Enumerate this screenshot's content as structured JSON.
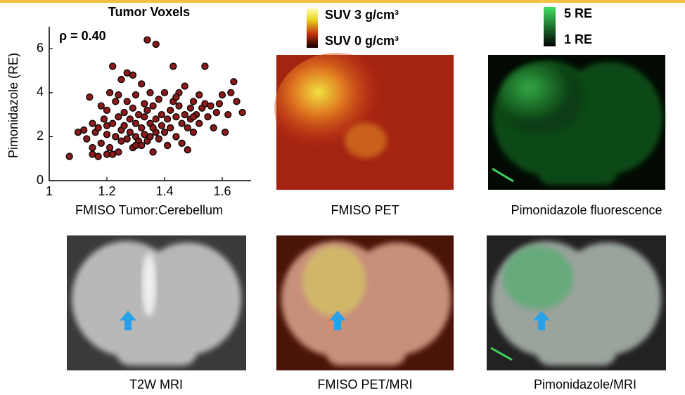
{
  "chart_data": {
    "type": "scatter",
    "title": "Tumor Voxels",
    "annotation": "ρ = 0.40",
    "x_label": "FMISO Tumor:Cerebellum",
    "y_label": "Pimonidazole (RE)",
    "color": "#8b1a1a",
    "xlim": [
      1,
      1.7
    ],
    "xticks": [
      1,
      1.2,
      1.4,
      1.6
    ],
    "ylim": [
      0,
      7
    ],
    "yticks": [
      0,
      2,
      4,
      6
    ],
    "x": [
      1.07,
      1.1,
      1.12,
      1.13,
      1.14,
      1.15,
      1.15,
      1.16,
      1.17,
      1.17,
      1.18,
      1.18,
      1.19,
      1.2,
      1.2,
      1.2,
      1.21,
      1.21,
      1.22,
      1.22,
      1.22,
      1.23,
      1.23,
      1.24,
      1.24,
      1.25,
      1.25,
      1.25,
      1.26,
      1.26,
      1.27,
      1.27,
      1.27,
      1.28,
      1.28,
      1.29,
      1.29,
      1.29,
      1.3,
      1.3,
      1.3,
      1.31,
      1.31,
      1.32,
      1.32,
      1.32,
      1.33,
      1.33,
      1.33,
      1.34,
      1.34,
      1.34,
      1.35,
      1.35,
      1.35,
      1.36,
      1.36,
      1.37,
      1.37,
      1.37,
      1.38,
      1.38,
      1.39,
      1.39,
      1.4,
      1.4,
      1.41,
      1.41,
      1.42,
      1.42,
      1.43,
      1.43,
      1.44,
      1.44,
      1.45,
      1.45,
      1.46,
      1.46,
      1.47,
      1.47,
      1.48,
      1.48,
      1.49,
      1.49,
      1.5,
      1.5,
      1.51,
      1.52,
      1.52,
      1.53,
      1.54,
      1.54,
      1.55,
      1.56,
      1.57,
      1.58,
      1.59,
      1.6,
      1.61,
      1.62,
      1.63,
      1.64,
      1.65,
      1.67,
      1.24,
      1.15,
      1.2,
      1.3,
      1.36,
      1.44,
      1.5
    ],
    "values": [
      1.1,
      2.2,
      2.3,
      1.9,
      3.8,
      1.2,
      2.6,
      2.2,
      1.1,
      2.4,
      1.7,
      3.4,
      2.8,
      1.2,
      2.1,
      3.2,
      1.5,
      4.0,
      2.6,
      1.2,
      5.2,
      2.0,
      3.6,
      1.3,
      2.9,
      2.3,
      4.6,
      1.8,
      3.1,
      2.5,
      4.9,
      1.9,
      3.6,
      2.2,
      2.8,
      1.5,
      3.3,
      4.8,
      2.0,
      2.6,
      3.9,
      1.8,
      3.0,
      2.4,
      4.4,
      1.6,
      2.9,
      3.5,
      2.1,
      6.4,
      1.8,
      3.2,
      2.6,
      4.0,
      2.0,
      3.4,
      1.3,
      2.8,
      6.2,
      2.2,
      3.7,
      1.9,
      2.5,
      3.0,
      4.0,
      2.2,
      2.8,
      1.6,
      3.2,
      2.4,
      5.2,
      3.6,
      2.0,
      2.9,
      3.4,
      4.0,
      2.6,
      1.7,
      3.0,
      4.3,
      2.4,
      1.4,
      3.3,
      2.8,
      3.6,
      2.2,
      3.0,
      3.9,
      2.6,
      3.3,
      5.2,
      3.5,
      2.9,
      3.4,
      2.4,
      3.1,
      3.5,
      3.9,
      2.2,
      3.0,
      4.0,
      4.5,
      3.6,
      3.1,
      3.9,
      1.5,
      2.5,
      1.6,
      2.4,
      3.8,
      2.9
    ]
  },
  "pet_colorbar": {
    "max_label": "SUV 3 g/cm³",
    "min_label": "SUV 0 g/cm³"
  },
  "fluorescence_colorbar": {
    "max_label": "5 RE",
    "min_label": "1 RE"
  },
  "captions": [
    "FMISO PET",
    "Pimonidazole fluorescence",
    "T2W MRI",
    "FMISO PET/MRI",
    "Pimonidazole/MRI"
  ]
}
